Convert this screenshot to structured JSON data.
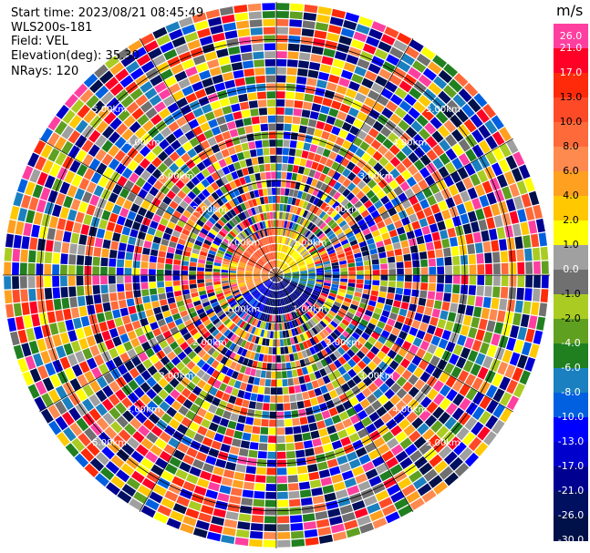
{
  "header": {
    "start_time": "Start time: 2023/08/21 08:45:49",
    "instrument": "WLS200s-181",
    "field": "Field: VEL",
    "elevation": "Elevation(deg): 35.30",
    "nrays": "NRays: 120"
  },
  "colorbar": {
    "unit": "m/s",
    "ticks": [
      "26.0",
      "21.0",
      "17.0",
      "13.0",
      "10.0",
      "8.0",
      "6.0",
      "4.0",
      "2.0",
      "1.0",
      "0.0",
      "-1.0",
      "-2.0",
      "-4.0",
      "-6.0",
      "-8.0",
      "-10.0",
      "-13.0",
      "-17.0",
      "-21.0",
      "-26.0",
      "-30.0"
    ],
    "colors": [
      "#ff3fa0",
      "#ff0026",
      "#ff2a0a",
      "#ff4a28",
      "#ff6a3a",
      "#ff8a50",
      "#ffa020",
      "#ffc800",
      "#ffff00",
      "#a0a0a0",
      "#707070",
      "#aacc22",
      "#60a020",
      "#208020",
      "#1a80c0",
      "#0060e0",
      "#0000ff",
      "#0000cc",
      "#000090",
      "#001060",
      "#001048"
    ]
  },
  "chart_data": {
    "type": "heatmap",
    "title": "",
    "field": "VEL",
    "units": "m/s",
    "nrays": 120,
    "elevation_deg": 35.3,
    "range_rings_km": [
      1.0,
      2.0,
      3.0,
      4.0,
      5.0
    ],
    "range_ring_labels": [
      "1.00km",
      "2.00km",
      "3.00km",
      "4.00km",
      "5.00km"
    ],
    "max_range_km": 5.8,
    "grid_spokes_deg": [
      0,
      30,
      60,
      90,
      120,
      150,
      180,
      210,
      240,
      270,
      300,
      330
    ],
    "pattern": {
      "near_range_km": 0.8,
      "near_field": [
        {
          "azimuth_from_deg": 290,
          "azimuth_to_deg": 360,
          "velocity_ms": 13.0
        },
        {
          "azimuth_from_deg": 0,
          "azimuth_to_deg": 80,
          "velocity_ms": 4.0
        },
        {
          "azimuth_from_deg": 80,
          "azimuth_to_deg": 110,
          "velocity_ms": -4.0
        },
        {
          "azimuth_from_deg": 110,
          "azimuth_to_deg": 200,
          "velocity_ms": -17.0
        },
        {
          "azimuth_from_deg": 200,
          "azimuth_to_deg": 240,
          "velocity_ms": -10.0
        },
        {
          "azimuth_from_deg": 240,
          "azimuth_to_deg": 290,
          "velocity_ms": 8.0
        }
      ],
      "far_field": "noise"
    }
  }
}
